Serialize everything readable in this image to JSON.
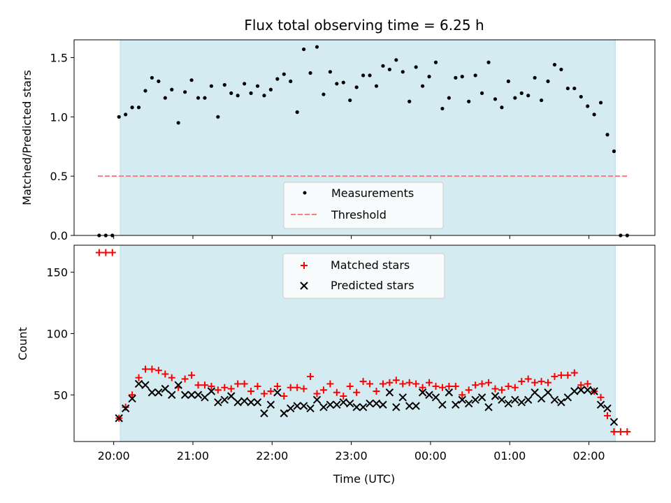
{
  "chart_data": [
    {
      "type": "scatter",
      "title": "Flux total observing time = 6.25 h",
      "xlabel": "",
      "ylabel": "Matched/Predicted stars",
      "xlim": [
        "19:30",
        "02:50"
      ],
      "ylim": [
        0,
        1.65
      ],
      "yticks": [
        0.0,
        0.5,
        1.0,
        1.5
      ],
      "ytick_labels": [
        "0.0",
        "0.5",
        "1.0",
        "1.5"
      ],
      "shaded_span": [
        "20:05",
        "02:20"
      ],
      "legend_position": "lower-center",
      "colors": {
        "shade": "#d4ebf1",
        "threshold": "#f08080",
        "points": "#000000"
      },
      "series": [
        {
          "name": "Measurements",
          "kind": "dot",
          "x": [
            "19:49",
            "19:54",
            "19:59",
            "20:04",
            "20:09",
            "20:14",
            "20:19",
            "20:24",
            "20:29",
            "20:34",
            "20:39",
            "20:44",
            "20:49",
            "20:54",
            "20:59",
            "21:04",
            "21:09",
            "21:14",
            "21:19",
            "21:24",
            "21:29",
            "21:34",
            "21:39",
            "21:44",
            "21:49",
            "21:54",
            "21:59",
            "22:04",
            "22:09",
            "22:14",
            "22:19",
            "22:24",
            "22:29",
            "22:34",
            "22:39",
            "22:44",
            "22:49",
            "22:54",
            "22:59",
            "23:04",
            "23:09",
            "23:14",
            "23:19",
            "23:24",
            "23:29",
            "23:34",
            "23:39",
            "23:44",
            "23:49",
            "23:54",
            "23:59",
            "00:04",
            "00:09",
            "00:14",
            "00:19",
            "00:24",
            "00:29",
            "00:34",
            "00:39",
            "00:44",
            "00:49",
            "00:54",
            "00:59",
            "01:04",
            "01:09",
            "01:14",
            "01:19",
            "01:24",
            "01:29",
            "01:34",
            "01:39",
            "01:44",
            "01:49",
            "01:54",
            "01:59",
            "02:04",
            "02:09",
            "02:14",
            "02:19",
            "02:24",
            "02:29"
          ],
          "y": [
            0,
            0,
            0,
            1.0,
            1.02,
            1.08,
            1.08,
            1.22,
            1.33,
            1.3,
            1.16,
            1.23,
            0.95,
            1.21,
            1.31,
            1.16,
            1.16,
            1.26,
            1.0,
            1.27,
            1.2,
            1.18,
            1.28,
            1.2,
            1.26,
            1.18,
            1.23,
            1.32,
            1.36,
            1.3,
            1.04,
            1.57,
            1.37,
            1.59,
            1.19,
            1.38,
            1.28,
            1.29,
            1.14,
            1.25,
            1.35,
            1.35,
            1.26,
            1.43,
            1.4,
            1.48,
            1.38,
            1.13,
            1.42,
            1.26,
            1.34,
            1.46,
            1.07,
            1.16,
            1.33,
            1.34,
            1.13,
            1.35,
            1.2,
            1.46,
            1.15,
            1.08,
            1.3,
            1.16,
            1.2,
            1.18,
            1.33,
            1.14,
            1.3,
            1.44,
            1.4,
            1.24,
            1.24,
            1.17,
            1.09,
            1.02,
            1.12,
            0.85,
            0.71,
            0,
            0
          ]
        },
        {
          "name": "Threshold",
          "kind": "dashed-line",
          "x": [
            "19:48",
            "02:30"
          ],
          "y": [
            0.5,
            0.5
          ]
        }
      ]
    },
    {
      "type": "scatter",
      "title": "",
      "xlabel": "Time (UTC)",
      "ylabel": "Count",
      "xlim": [
        "19:30",
        "02:50"
      ],
      "ylim": [
        12,
        172
      ],
      "yticks": [
        50,
        100,
        150
      ],
      "ytick_labels": [
        "50",
        "100",
        "150"
      ],
      "xticks": [
        "20:00",
        "21:00",
        "22:00",
        "23:00",
        "00:00",
        "01:00",
        "02:00"
      ],
      "xtick_labels": [
        "20:00",
        "21:00",
        "22:00",
        "23:00",
        "00:00",
        "01:00",
        "02:00"
      ],
      "shaded_span": [
        "20:05",
        "02:20"
      ],
      "legend_position": "upper-center",
      "colors": {
        "shade": "#d4ebf1",
        "matched": "#ff0000",
        "predicted": "#000000"
      },
      "series": [
        {
          "name": "Matched stars",
          "kind": "plus",
          "x": [
            "19:49",
            "19:54",
            "19:59",
            "20:04",
            "20:09",
            "20:14",
            "20:19",
            "20:24",
            "20:29",
            "20:34",
            "20:39",
            "20:44",
            "20:49",
            "20:54",
            "20:59",
            "21:04",
            "21:09",
            "21:14",
            "21:19",
            "21:24",
            "21:29",
            "21:34",
            "21:39",
            "21:44",
            "21:49",
            "21:54",
            "21:59",
            "22:04",
            "22:09",
            "22:14",
            "22:19",
            "22:24",
            "22:29",
            "22:34",
            "22:39",
            "22:44",
            "22:49",
            "22:54",
            "22:59",
            "23:04",
            "23:09",
            "23:14",
            "23:19",
            "23:24",
            "23:29",
            "23:34",
            "23:39",
            "23:44",
            "23:49",
            "23:54",
            "23:59",
            "00:04",
            "00:09",
            "00:14",
            "00:19",
            "00:24",
            "00:29",
            "00:34",
            "00:39",
            "00:44",
            "00:49",
            "00:54",
            "00:59",
            "01:04",
            "01:09",
            "01:14",
            "01:19",
            "01:24",
            "01:29",
            "01:34",
            "01:39",
            "01:44",
            "01:49",
            "01:54",
            "01:59",
            "02:04",
            "02:09",
            "02:14",
            "02:19",
            "02:24",
            "02:29"
          ],
          "y": [
            166,
            166,
            166,
            31,
            40,
            50,
            64,
            71,
            71,
            70,
            67,
            64,
            56,
            63,
            66,
            58,
            58,
            57,
            54,
            56,
            55,
            59,
            59,
            53,
            57,
            51,
            53,
            57,
            49,
            56,
            56,
            55,
            65,
            51,
            54,
            59,
            52,
            49,
            57,
            52,
            61,
            59,
            53,
            59,
            60,
            62,
            59,
            60,
            59,
            56,
            60,
            57,
            56,
            57,
            57,
            50,
            54,
            58,
            59,
            60,
            55,
            54,
            57,
            56,
            61,
            63,
            60,
            61,
            60,
            65,
            66,
            66,
            68,
            58,
            59,
            53,
            48,
            33,
            20,
            20,
            20
          ]
        },
        {
          "name": "Predicted stars",
          "kind": "x",
          "x": [
            "20:04",
            "20:09",
            "20:14",
            "20:19",
            "20:24",
            "20:29",
            "20:34",
            "20:39",
            "20:44",
            "20:49",
            "20:54",
            "20:59",
            "21:04",
            "21:09",
            "21:14",
            "21:19",
            "21:24",
            "21:29",
            "21:34",
            "21:39",
            "21:44",
            "21:49",
            "21:54",
            "21:59",
            "22:04",
            "22:09",
            "22:14",
            "22:19",
            "22:24",
            "22:29",
            "22:34",
            "22:39",
            "22:44",
            "22:49",
            "22:54",
            "22:59",
            "23:04",
            "23:09",
            "23:14",
            "23:19",
            "23:24",
            "23:29",
            "23:34",
            "23:39",
            "23:44",
            "23:49",
            "23:54",
            "23:59",
            "00:04",
            "00:09",
            "00:14",
            "00:19",
            "00:24",
            "00:29",
            "00:34",
            "00:39",
            "00:44",
            "00:49",
            "00:54",
            "00:59",
            "01:04",
            "01:09",
            "01:14",
            "01:19",
            "01:24",
            "01:29",
            "01:34",
            "01:39",
            "01:44",
            "01:49",
            "01:54",
            "01:59",
            "02:04",
            "02:09",
            "02:14",
            "02:19"
          ],
          "y": [
            31,
            39,
            47,
            59,
            58,
            52,
            52,
            55,
            50,
            58,
            50,
            50,
            50,
            48,
            53,
            44,
            46,
            49,
            44,
            45,
            44,
            44,
            35,
            42,
            52,
            35,
            39,
            41,
            41,
            39,
            46,
            40,
            42,
            42,
            44,
            43,
            40,
            40,
            43,
            43,
            42,
            52,
            40,
            48,
            41,
            41,
            52,
            50,
            48,
            42,
            52,
            42,
            46,
            43,
            46,
            48,
            40,
            49,
            46,
            43,
            46,
            44,
            46,
            52,
            47,
            52,
            46,
            44,
            48,
            53,
            54,
            54,
            53,
            42,
            39,
            28
          ]
        }
      ]
    }
  ]
}
